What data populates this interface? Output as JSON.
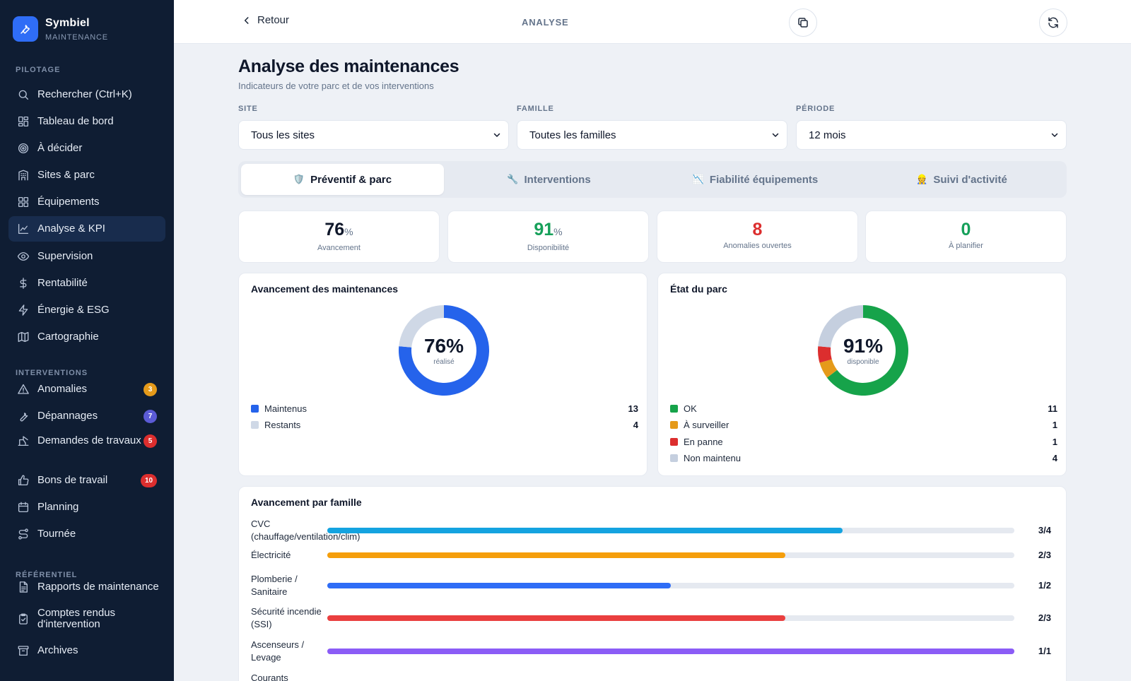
{
  "brand": {
    "name": "Symbiel",
    "subtitle": "MAINTENANCE"
  },
  "sidebar": {
    "sections": [
      {
        "title": "PILOTAGE"
      },
      {
        "title": "INTERVENTIONS"
      },
      {
        "title": "RÉFÉRENTIEL"
      }
    ],
    "items": [
      {
        "label": "Rechercher (Ctrl+K)",
        "icon": "search-icon"
      },
      {
        "label": "Tableau de bord",
        "icon": "dashboard-icon"
      },
      {
        "label": "À décider",
        "icon": "target-icon"
      },
      {
        "label": "Sites & parc",
        "icon": "building-icon"
      },
      {
        "label": "Équipements",
        "icon": "grid-icon"
      },
      {
        "label": "Analyse & KPI",
        "icon": "chart-line-icon",
        "active": true
      },
      {
        "label": "Supervision",
        "icon": "eye-icon"
      },
      {
        "label": "Rentabilité",
        "icon": "dollar-icon"
      },
      {
        "label": "Énergie & ESG",
        "icon": "bolt-icon"
      },
      {
        "label": "Cartographie",
        "icon": "map-icon"
      },
      {
        "label": "Anomalies",
        "icon": "warning-icon",
        "badge": "3",
        "badge_color": "#e59a1a"
      },
      {
        "label": "Dépannages",
        "icon": "wrench-icon",
        "badge": "7",
        "badge_color": "#5b5bd6"
      },
      {
        "label": "Demandes de travaux",
        "icon": "crane-icon",
        "badge": "5",
        "badge_color": "#dc2e2e"
      },
      {
        "label": "Bons de travail",
        "icon": "thumb-icon",
        "badge": "10",
        "badge_color": "#dc2e2e"
      },
      {
        "label": "Planning",
        "icon": "calendar-icon"
      },
      {
        "label": "Tournée",
        "icon": "route-icon"
      },
      {
        "label": "Rapports de maintenance",
        "icon": "document-icon"
      },
      {
        "label": "Comptes rendus d'intervention",
        "icon": "clipboard-check-icon"
      },
      {
        "label": "Archives",
        "icon": "archive-icon"
      }
    ]
  },
  "topbar": {
    "back_label": "Retour",
    "title": "ANALYSE",
    "copy_icon": "copy-icon",
    "refresh_icon": "refresh-icon"
  },
  "page": {
    "title": "Analyse des maintenances",
    "subtitle": "Indicateurs de votre parc et de vos interventions"
  },
  "filters": [
    {
      "label": "SITE",
      "value": "Tous les sites"
    },
    {
      "label": "FAMILLE",
      "value": "Toutes les familles"
    },
    {
      "label": "PÉRIODE",
      "value": "12 mois"
    }
  ],
  "tabs": [
    {
      "emoji": "🛡️",
      "label": "Préventif & parc",
      "active": true
    },
    {
      "emoji": "🔧",
      "label": "Interventions"
    },
    {
      "emoji": "📉",
      "label": "Fiabilité équipements"
    },
    {
      "emoji": "👷",
      "label": "Suivi d'activité"
    }
  ],
  "kpis": [
    {
      "value": "76",
      "unit": "%",
      "label": "Avancement",
      "color": "#0f172a"
    },
    {
      "value": "91",
      "unit": "%",
      "label": "Disponibilité",
      "color": "#16a05a"
    },
    {
      "value": "8",
      "unit": "",
      "label": "Anomalies ouvertes",
      "color": "#dc2e2e"
    },
    {
      "value": "0",
      "unit": "",
      "label": "À planifier",
      "color": "#16a05a"
    }
  ],
  "avancement_card": {
    "title": "Avancement des maintenances",
    "center_value": "76%",
    "center_label": "réalisé"
  },
  "etat_card": {
    "title": "État du parc",
    "center_value": "91%",
    "center_label": "disponible"
  },
  "famille_card": {
    "title": "Avancement par famille",
    "rows": [
      {
        "label": "CVC (chauffage/ventilation/clim)",
        "count": "3/4",
        "color": "#14a3e0",
        "fraction": 0.75
      },
      {
        "label": "Électricité",
        "count": "2/3",
        "color": "#f59e0b",
        "fraction": 0.6667
      },
      {
        "label": "Plomberie / Sanitaire",
        "count": "1/2",
        "color": "#2f6df6",
        "fraction": 0.5
      },
      {
        "label": "Sécurité incendie (SSI)",
        "count": "2/3",
        "color": "#ea3f3f",
        "fraction": 0.6667
      },
      {
        "label": "Ascenseurs / Levage",
        "count": "1/1",
        "color": "#8b5cf6",
        "fraction": 1.0
      },
      {
        "label": "Courants",
        "count": "",
        "color": "#10b981",
        "fraction": 0
      }
    ]
  },
  "chart_data": [
    {
      "type": "pie",
      "title": "Avancement des maintenances",
      "categories": [
        "Maintenus",
        "Restants"
      ],
      "values": [
        13,
        4
      ],
      "colors": [
        "#2563eb",
        "#cfd8e6"
      ]
    },
    {
      "type": "pie",
      "title": "État du parc",
      "categories": [
        "OK",
        "À surveiller",
        "En panne",
        "Non maintenu"
      ],
      "values": [
        11,
        1,
        1,
        4
      ],
      "colors": [
        "#16a34a",
        "#e59a1a",
        "#dc2e2e",
        "#c5cfdf"
      ]
    }
  ]
}
